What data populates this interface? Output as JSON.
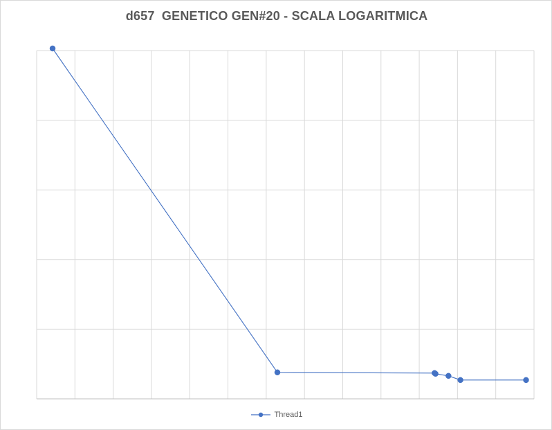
{
  "chart_data": {
    "type": "line",
    "title": "d657  GENETICO GEN#20 - SCALA LOGARITMICA",
    "xlabel": "",
    "ylabel": "",
    "xlim": [
      0,
      25
    ],
    "ylim": [
      0,
      5
    ],
    "log_scale_y": true,
    "grid": true,
    "legend": "bottom",
    "series": [
      {
        "name": "Thread1",
        "color": "#4472c4",
        "points": [
          {
            "x": 0.8,
            "y": 5.03
          },
          {
            "x": 12.1,
            "y": 0.38
          },
          {
            "x": 20.0,
            "y": 0.37
          },
          {
            "x": 20.05,
            "y": 0.36
          },
          {
            "x": 20.7,
            "y": 0.33
          },
          {
            "x": 21.3,
            "y": 0.27
          },
          {
            "x": 24.6,
            "y": 0.27
          }
        ]
      }
    ]
  }
}
